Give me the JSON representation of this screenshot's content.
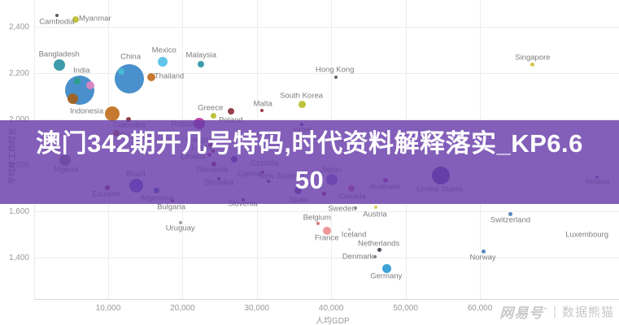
{
  "banner": {
    "line1": "澳门342期开几号特码,时代资料解释落实_KP6.6",
    "line2": "50",
    "overlay_rgba": "rgba(104,60,170,0.82)",
    "text_color": "#ffffff"
  },
  "watermark": {
    "brand": "网易号",
    "mark": "°",
    "divider": "|",
    "name": "数据熊猫"
  },
  "chart_data": {
    "type": "scatter",
    "title": "",
    "xlabel": "人均GDP",
    "ylabel": "平均年工作时长",
    "grid": true,
    "legend_position": "none",
    "xlim": [
      0,
      78700
    ],
    "ylim": [
      1220,
      2516
    ],
    "x_ticks": [
      10000,
      20000,
      30000,
      40000,
      50000,
      60000
    ],
    "x_tick_labels": [
      "10,000",
      "20,000",
      "30,000",
      "40,000",
      "50,000",
      "60,000"
    ],
    "y_ticks": [
      1400,
      1600,
      1800,
      2000,
      2200,
      2400
    ],
    "y_tick_labels": [
      "1,400",
      "1,600",
      "1,800",
      "2,000",
      "2,200",
      "2,400"
    ],
    "points": [
      {
        "label": "Cambodia",
        "gdp": 3100,
        "hours": 2449,
        "r": 2,
        "color": "#4a4a4a",
        "lx": 0,
        "ly": 8
      },
      {
        "label": "Myanmar",
        "gdp": 5600,
        "hours": 2432,
        "r": 4,
        "color": "#b9bd2b",
        "lx": 24,
        "ly": -1
      },
      {
        "label": "Bangladesh",
        "gdp": 3400,
        "hours": 2235,
        "r": 7,
        "color": "#2d93a3",
        "lx": 0,
        "ly": -13
      },
      {
        "label": "India",
        "gdp": 6200,
        "hours": 2125,
        "r": 18,
        "color": "#3a87c8",
        "lx": 2,
        "ly": -24
      },
      {
        "label": "",
        "gdp": 5800,
        "hours": 2164,
        "r": 4,
        "color": "#2aa086",
        "lx": 0,
        "ly": 0
      },
      {
        "label": "",
        "gdp": 7600,
        "hours": 2147,
        "r": 5,
        "color": "#e287c3",
        "lx": 0,
        "ly": 0
      },
      {
        "label": "",
        "gdp": 5200,
        "hours": 2090,
        "r": 6.5,
        "color": "#a4621c",
        "lx": 0,
        "ly": 0
      },
      {
        "label": "China",
        "gdp": 12800,
        "hours": 2175,
        "r": 18,
        "color": "#3a87c8",
        "lx": 2,
        "ly": -27
      },
      {
        "label": "",
        "gdp": 11700,
        "hours": 2206,
        "r": 4,
        "color": "#49bcd6",
        "lx": 0,
        "ly": 0
      },
      {
        "label": "Mexico",
        "gdp": 17300,
        "hours": 2249,
        "r": 6,
        "color": "#54c0e8",
        "lx": 2,
        "ly": -14
      },
      {
        "label": "Thailand",
        "gdp": 15800,
        "hours": 2182,
        "r": 5,
        "color": "#c06f1d",
        "lx": 22,
        "ly": -1
      },
      {
        "label": "Malaysia",
        "gdp": 22500,
        "hours": 2238,
        "r": 4,
        "color": "#2d93a3",
        "lx": 0,
        "ly": -11
      },
      {
        "label": "Indonesia",
        "gdp": 10500,
        "hours": 2023,
        "r": 9,
        "color": "#c06f1d",
        "lx": -31,
        "ly": -3
      },
      {
        "label": "",
        "gdp": 12700,
        "hours": 1999,
        "r": 3,
        "color": "#8c2f3e",
        "lx": 0,
        "ly": 0
      },
      {
        "label": "Colombia",
        "gdp": 11100,
        "hours": 1939,
        "r": 4,
        "color": "#c06f1d",
        "lx": 16,
        "ly": -10
      },
      {
        "label": "Sri Lanka",
        "gdp": 14900,
        "hours": 1925,
        "r": 2,
        "color": "#8c2f3e",
        "lx": -11,
        "ly": -1
      },
      {
        "label": "Russia",
        "gdp": 22300,
        "hours": 1981,
        "r": 7,
        "color": "#b8399f",
        "lx": -20,
        "ly": 1
      },
      {
        "label": "Nigeria",
        "gdp": 4200,
        "hours": 1823,
        "r": 7,
        "color": "#8b8590",
        "lx": 1,
        "ly": 12
      },
      {
        "label": "Hungary",
        "gdp": 23700,
        "hours": 1889,
        "r": 2.5,
        "color": "#8c2f3e",
        "lx": -12,
        "ly": -6
      },
      {
        "label": "Latvia",
        "gdp": 24100,
        "hours": 1861,
        "r": 2,
        "color": "#8c2f3e",
        "lx": -14,
        "ly": -4
      },
      {
        "label": "Croatia",
        "gdp": 23600,
        "hours": 1847,
        "r": 2.5,
        "color": "#b8399f",
        "lx": -20,
        "ly": 3
      },
      {
        "label": "Israel",
        "gdp": 36000,
        "hours": 1977,
        "r": 2,
        "color": "#53409c",
        "lx": 1,
        "ly": 7
      },
      {
        "label": "Greece",
        "gdp": 24200,
        "hours": 2016,
        "r": 3.5,
        "color": "#b9bd2b",
        "lx": -4,
        "ly": -9
      },
      {
        "label": "Poland",
        "gdp": 26500,
        "hours": 2034,
        "r": 4,
        "color": "#8c2f3e",
        "lx": 0,
        "ly": 11
      },
      {
        "label": "Malta",
        "gdp": 30700,
        "hours": 2037,
        "r": 2,
        "color": "#8c2f3e",
        "lx": 1,
        "ly": -8
      },
      {
        "label": "South Korea",
        "gdp": 36100,
        "hours": 2065,
        "r": 4.5,
        "color": "#b9bd2b",
        "lx": -1,
        "ly": -10
      },
      {
        "label": "Hong Kong",
        "gdp": 40600,
        "hours": 2182,
        "r": 2,
        "color": "#555555",
        "lx": -1,
        "ly": -9
      },
      {
        "label": "Singapore",
        "gdp": 67100,
        "hours": 2235,
        "r": 2.5,
        "color": "#cfc23e",
        "lx": 0,
        "ly": -9
      },
      {
        "label": "Czechia",
        "gdp": 27000,
        "hours": 1826,
        "r": 4,
        "color": "#5b48a8",
        "lx": 37,
        "ly": 5
      },
      {
        "label": "Romania",
        "gdp": 24200,
        "hours": 1805,
        "r": 3,
        "color": "#8c2f3e",
        "lx": -2,
        "ly": 7
      },
      {
        "label": "Slovakia",
        "gdp": 24900,
        "hours": 1742,
        "r": 2,
        "color": "#8c2f3e",
        "lx": 0,
        "ly": 5
      },
      {
        "label": "Cyprus",
        "gdp": 30800,
        "hours": 1770,
        "r": 2,
        "color": "#8c2f3e",
        "lx": -16,
        "ly": 2
      },
      {
        "label": "New Zealand",
        "gdp": 31600,
        "hours": 1731,
        "r": 2,
        "color": "#8c2f3e",
        "lx": 16,
        "ly": -6
      },
      {
        "label": "Japan",
        "gdp": 40100,
        "hours": 1738,
        "r": 7,
        "color": "#8f6fc7",
        "lx": -1,
        "ly": -12
      },
      {
        "label": "Spain",
        "gdp": 35600,
        "hours": 1689,
        "r": 4.5,
        "color": "#53409c",
        "lx": 0,
        "ly": 11
      },
      {
        "label": "Slovenia",
        "gdp": 28200,
        "hours": 1650,
        "r": 2,
        "color": "#8c2f3e",
        "lx": -1,
        "ly": 5
      },
      {
        "label": "Canada",
        "gdp": 42700,
        "hours": 1699,
        "r": 4,
        "color": "#d4606c",
        "lx": 1,
        "ly": 10
      },
      {
        "label": "",
        "gdp": 39000,
        "hours": 1678,
        "r": 2.5,
        "color": "#8c2f3e",
        "lx": 0,
        "ly": 0
      },
      {
        "label": "Australia",
        "gdp": 47300,
        "hours": 1735,
        "r": 3,
        "color": "#b8399f",
        "lx": -1,
        "ly": 8
      },
      {
        "label": "United States",
        "gdp": 54800,
        "hours": 1756,
        "r": 11,
        "color": "#4a3a94",
        "lx": -2,
        "ly": 17
      },
      {
        "label": "Ireland",
        "gdp": 75800,
        "hours": 1749,
        "r": 2,
        "color": "#7a68b8",
        "lx": 0,
        "ly": 6
      },
      {
        "label": "Brazil",
        "gdp": 13800,
        "hours": 1710,
        "r": 8.5,
        "color": "#4f5ac8",
        "lx": -1,
        "ly": -15
      },
      {
        "label": "Ecuador",
        "gdp": 9900,
        "hours": 1703,
        "r": 3,
        "color": "#9c2b52",
        "lx": -1,
        "ly": 8
      },
      {
        "label": "Argentina",
        "gdp": 16500,
        "hours": 1692,
        "r": 3.5,
        "color": "#4759bb",
        "lx": 0,
        "ly": 10
      },
      {
        "label": "Bulgaria",
        "gdp": 18600,
        "hours": 1646,
        "r": 2,
        "color": "#8c2f3e",
        "lx": -1,
        "ly": 8
      },
      {
        "label": "Uruguay",
        "gdp": 19700,
        "hours": 1551,
        "r": 2,
        "color": "#999999",
        "lx": 0,
        "ly": 7
      },
      {
        "label": "Sweden",
        "gdp": 43300,
        "hours": 1615,
        "r": 2,
        "color": "#888888",
        "lx": -17,
        "ly": 1
      },
      {
        "label": "Austria",
        "gdp": 46000,
        "hours": 1618,
        "r": 2,
        "color": "#d9c94e",
        "lx": -1,
        "ly": 9
      },
      {
        "label": "Belgium",
        "gdp": 38200,
        "hours": 1548,
        "r": 2,
        "color": "#d46a6a",
        "lx": -1,
        "ly": -7
      },
      {
        "label": "France",
        "gdp": 39400,
        "hours": 1516,
        "r": 5,
        "color": "#ef8e8e",
        "lx": 0,
        "ly": 9
      },
      {
        "label": "Iceland",
        "gdp": 42400,
        "hours": 1520,
        "r": 1.5,
        "color": "#bbbbbb",
        "lx": 6,
        "ly": 6
      },
      {
        "label": "Netherlands",
        "gdp": 46500,
        "hours": 1435,
        "r": 2.5,
        "color": "#3f3f49",
        "lx": -1,
        "ly": -7
      },
      {
        "label": "Denmark",
        "gdp": 45900,
        "hours": 1404,
        "r": 2,
        "color": "#777777",
        "lx": -21,
        "ly": 0
      },
      {
        "label": "Germany",
        "gdp": 47500,
        "hours": 1354,
        "r": 5.5,
        "color": "#2e9ad4",
        "lx": -1,
        "ly": 10
      },
      {
        "label": "Switzerland",
        "gdp": 64100,
        "hours": 1590,
        "r": 2.5,
        "color": "#4a7fb5",
        "lx": 0,
        "ly": 8
      },
      {
        "label": "Luxembourg",
        "gdp": 72000,
        "hours": 1499,
        "r": 0,
        "color": "#999999",
        "lx": 22,
        "ly": 0
      },
      {
        "label": "Norway",
        "gdp": 60500,
        "hours": 1425,
        "r": 2.5,
        "color": "#4a7fb5",
        "lx": -1,
        "ly": 7
      }
    ]
  }
}
